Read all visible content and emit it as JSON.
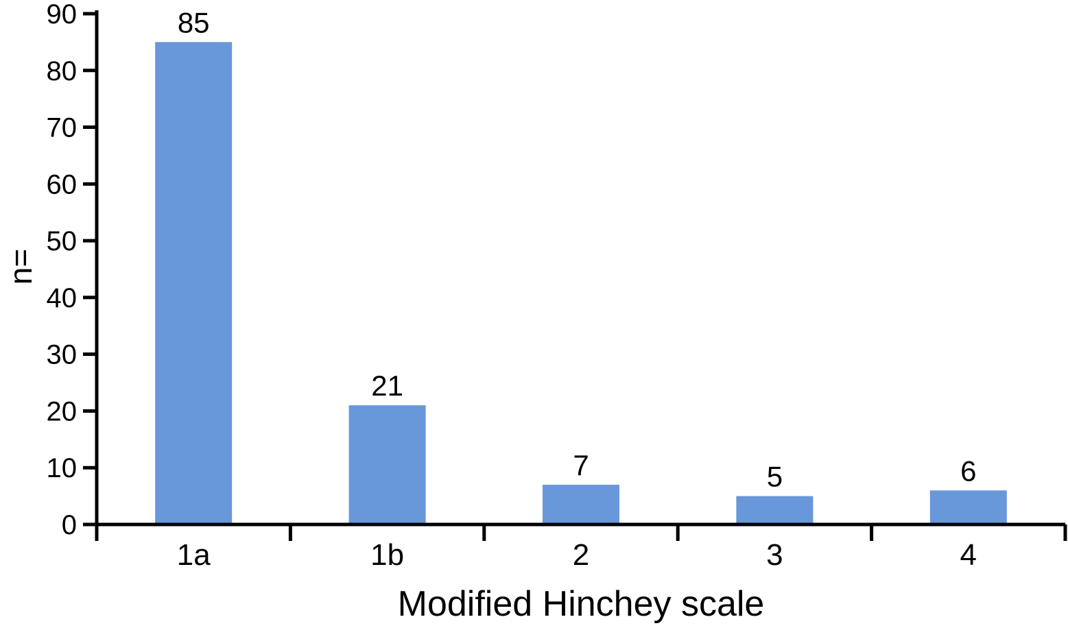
{
  "figure": {
    "background": "#ffffff"
  },
  "chart_data": {
    "type": "bar",
    "categories": [
      "1a",
      "1b",
      "2",
      "3",
      "4"
    ],
    "values": [
      85,
      21,
      7,
      5,
      6
    ],
    "title": "",
    "xlabel": "Modified Hinchey scale",
    "ylabel": "n=",
    "ylim": [
      0,
      90
    ],
    "yticks": [
      0,
      10,
      20,
      30,
      40,
      50,
      60,
      70,
      80,
      90
    ],
    "grid": false,
    "legend": false,
    "value_labels_shown": true,
    "bar_color": "#6897DA",
    "axis_color": "#000000",
    "text_color": "#000000"
  }
}
